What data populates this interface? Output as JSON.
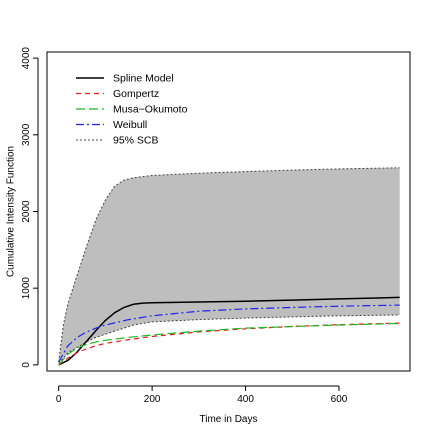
{
  "chart_data": {
    "type": "line",
    "title": "",
    "xlabel": "Time in Days",
    "ylabel": "Cumulative Intensity Function",
    "xlim": [
      -25,
      752
    ],
    "ylim": [
      -80,
      4080
    ],
    "x_ticks": [
      0,
      200,
      400,
      600
    ],
    "y_ticks": [
      0,
      1000,
      2000,
      3000,
      4000
    ],
    "grid": false,
    "legend_position": "top-left",
    "band": {
      "name": "95% SCB",
      "color": "#bebebe",
      "x": [
        0,
        10,
        20,
        40,
        60,
        80,
        100,
        120,
        140,
        160,
        200,
        300,
        400,
        500,
        600,
        730
      ],
      "upper": [
        40,
        520,
        800,
        1180,
        1550,
        1900,
        2150,
        2330,
        2410,
        2440,
        2470,
        2500,
        2520,
        2540,
        2555,
        2570
      ],
      "lower": [
        20,
        90,
        160,
        230,
        300,
        360,
        400,
        440,
        480,
        520,
        560,
        590,
        610,
        625,
        640,
        650
      ]
    },
    "series": [
      {
        "name": "Spline Model",
        "color": "#000000",
        "dash": "",
        "width": 1.5,
        "x": [
          0,
          20,
          40,
          60,
          80,
          100,
          120,
          140,
          160,
          180,
          200,
          250,
          300,
          400,
          500,
          600,
          730
        ],
        "y": [
          0,
          60,
          170,
          310,
          450,
          580,
          680,
          750,
          790,
          805,
          810,
          815,
          820,
          830,
          845,
          860,
          880
        ]
      },
      {
        "name": "Gompertz",
        "color": "#df1f1f",
        "dash": "5,4",
        "width": 1.2,
        "x": [
          0,
          20,
          40,
          60,
          80,
          100,
          150,
          200,
          250,
          300,
          400,
          500,
          600,
          730
        ],
        "y": [
          0,
          90,
          160,
          210,
          250,
          280,
          330,
          370,
          400,
          430,
          470,
          500,
          525,
          545
        ]
      },
      {
        "name": "Musa-Okumoto",
        "color": "#22b522",
        "dash": "9,4",
        "width": 1.2,
        "x": [
          0,
          20,
          40,
          60,
          80,
          100,
          150,
          200,
          250,
          300,
          400,
          500,
          600,
          730
        ],
        "y": [
          0,
          140,
          220,
          270,
          300,
          320,
          360,
          390,
          415,
          440,
          480,
          500,
          520,
          540
        ]
      },
      {
        "name": "Weibull",
        "color": "#2222ee",
        "dash": "8,3,2,3",
        "width": 1.2,
        "x": [
          0,
          20,
          40,
          60,
          80,
          100,
          150,
          200,
          250,
          300,
          400,
          500,
          600,
          730
        ],
        "y": [
          40,
          250,
          360,
          430,
          480,
          520,
          590,
          640,
          670,
          700,
          730,
          750,
          765,
          780
        ]
      }
    ],
    "legend": [
      {
        "label": "Spline Model",
        "color": "#000000",
        "dash": "",
        "width": 1.5
      },
      {
        "label": "Gompertz",
        "color": "#df1f1f",
        "dash": "5,4",
        "width": 1.2
      },
      {
        "label": "Musa−Okumoto",
        "color": "#22b522",
        "dash": "9,4",
        "width": 1.2
      },
      {
        "label": "Weibull",
        "color": "#2222ee",
        "dash": "8,3,2,3",
        "width": 1.2
      },
      {
        "label": "95% SCB",
        "color": "#444444",
        "dash": "2,2",
        "width": 1
      }
    ]
  }
}
